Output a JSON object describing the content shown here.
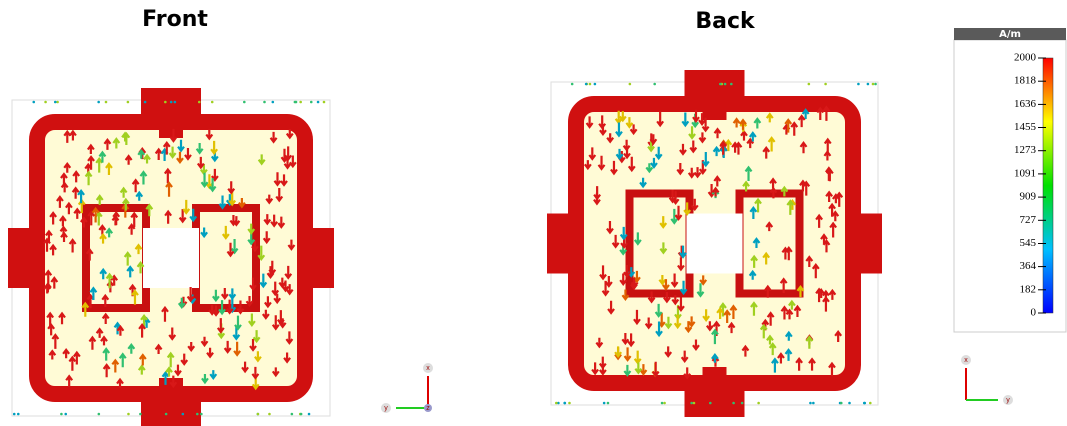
{
  "panels": [
    {
      "title": "Front"
    },
    {
      "title": "Back"
    }
  ],
  "colorbar": {
    "unit": "A/m",
    "range": [
      0,
      2000
    ],
    "ticks": [
      2000,
      1818,
      1636,
      1455,
      1273,
      1091,
      909,
      727,
      545,
      364,
      182,
      0
    ]
  },
  "triads": [
    {
      "labels": [
        "x",
        "y",
        "z"
      ]
    },
    {
      "labels": [
        "x",
        "y"
      ]
    }
  ]
}
